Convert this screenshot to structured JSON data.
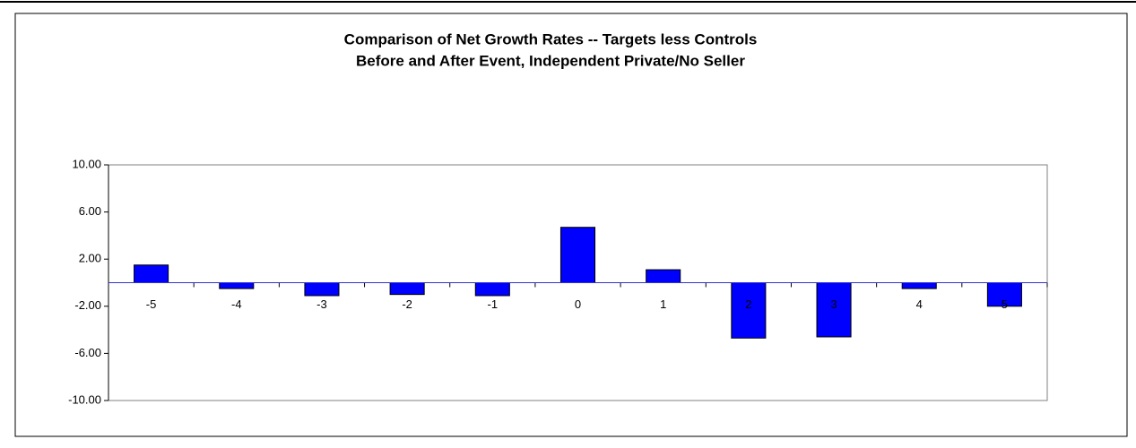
{
  "chart_data": {
    "type": "bar",
    "title": "Comparison of Net Growth Rates -- Targets less Controls",
    "subtitle": "Before and After Event, Independent Private/No Seller",
    "categories": [
      "-5",
      "-4",
      "-3",
      "-2",
      "-1",
      "0",
      "1",
      "2",
      "3",
      "4",
      "5"
    ],
    "values": [
      1.5,
      -0.5,
      -1.1,
      -1.0,
      -1.1,
      4.7,
      1.1,
      -4.7,
      -4.6,
      -0.5,
      -2.0
    ],
    "color": "#0000ff",
    "ylim": [
      -10,
      10
    ],
    "yticks": [
      {
        "value": -10,
        "label": "-10.00"
      },
      {
        "value": -6,
        "label": "-6.00"
      },
      {
        "value": -2,
        "label": "-2.00"
      },
      {
        "value": 2,
        "label": "2.00"
      },
      {
        "value": 6,
        "label": "6.00"
      },
      {
        "value": 10,
        "label": "10.00"
      }
    ],
    "grid": false
  }
}
